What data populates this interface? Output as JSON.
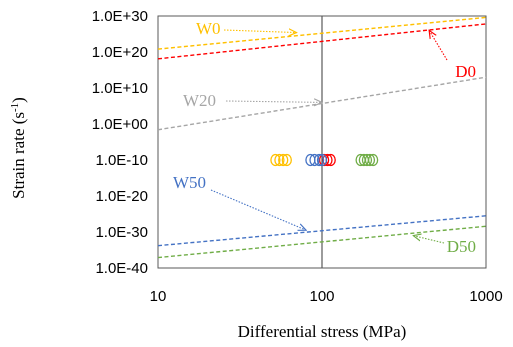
{
  "chart_data": {
    "type": "line",
    "title": "",
    "xlabel": "Differential stress (MPa)",
    "ylabel_main": "Strain rate (s",
    "ylabel_sup": "-1",
    "ylabel_close": ")",
    "xscale": "log",
    "yscale": "log",
    "xlim": [
      10,
      1000
    ],
    "ylim": [
      1e-40,
      1e+30
    ],
    "grid": false,
    "legend": "none",
    "x_ticks": [
      {
        "value": 10,
        "label": "10"
      },
      {
        "value": 100,
        "label": "100"
      },
      {
        "value": 1000,
        "label": "1000"
      }
    ],
    "y_ticks": [
      {
        "value": 1e+30,
        "label": "1.0E+30"
      },
      {
        "value": 1e+20,
        "label": "1.0E+20"
      },
      {
        "value": 10000000000.0,
        "label": "1.0E+10"
      },
      {
        "value": 1,
        "label": "1.0E+00"
      },
      {
        "value": 1e-10,
        "label": "1.0E-10"
      },
      {
        "value": 1e-20,
        "label": "1.0E-20"
      },
      {
        "value": 1e-30,
        "label": "1.0E-30"
      },
      {
        "value": 1e-40,
        "label": "1.0E-40"
      }
    ],
    "reference_line_x": 100,
    "series": [
      {
        "name": "W0",
        "color": "#FFC000",
        "line": {
          "x": [
            10,
            1000
          ],
          "y_exp": [
            20.8,
            29.6
          ]
        },
        "points": {
          "x": [
            52,
            55,
            58,
            61
          ],
          "y": [
            1e-10,
            1e-10,
            1e-10,
            1e-10
          ]
        }
      },
      {
        "name": "D0",
        "color": "#FF0000",
        "line": {
          "x": [
            10,
            1000
          ],
          "y_exp": [
            18.1,
            27.8
          ]
        },
        "points": {
          "x": [
            103,
            108,
            113
          ],
          "y": [
            1e-10,
            1e-10,
            1e-10
          ]
        }
      },
      {
        "name": "W20",
        "color": "#A6A6A6",
        "line": {
          "x": [
            10,
            1000
          ],
          "y_exp": [
            -1.6,
            13.0
          ]
        },
        "points": {
          "x": [],
          "y": []
        }
      },
      {
        "name": "W50",
        "color": "#4472C4",
        "line": {
          "x": [
            10,
            1000
          ],
          "y_exp": [
            -33.8,
            -25.5
          ]
        },
        "points": {
          "x": [
            85,
            90,
            96,
            100
          ],
          "y": [
            1e-10,
            1e-10,
            1e-10,
            1e-10
          ]
        }
      },
      {
        "name": "D50",
        "color": "#70AD47",
        "line": {
          "x": [
            10,
            1000
          ],
          "y_exp": [
            -37.1,
            -28.4
          ]
        },
        "points": {
          "x": [
            172,
            180,
            188,
            196,
            205
          ],
          "y": [
            1e-10,
            1e-10,
            1e-10,
            1e-10,
            1e-10
          ]
        }
      }
    ],
    "annotations": [
      {
        "series": "W0",
        "text": "W0",
        "color": "#FFC000",
        "arrow_to": {
          "x": 70,
          "y_exp": 25.4
        }
      },
      {
        "series": "D0",
        "text": "D0",
        "color": "#FF0000",
        "arrow_to": {
          "x": 450,
          "y_exp": 26.0
        }
      },
      {
        "series": "W20",
        "text": "W20",
        "color": "#A6A6A6",
        "arrow_to": {
          "x": 100,
          "y_exp": 6.0
        }
      },
      {
        "series": "W50",
        "text": "W50",
        "color": "#4472C4",
        "arrow_to": {
          "x": 80,
          "y_exp": -29.5
        }
      },
      {
        "series": "D50",
        "text": "D50",
        "color": "#70AD47",
        "arrow_to": {
          "x": 360,
          "y_exp": -31.0
        }
      }
    ]
  }
}
